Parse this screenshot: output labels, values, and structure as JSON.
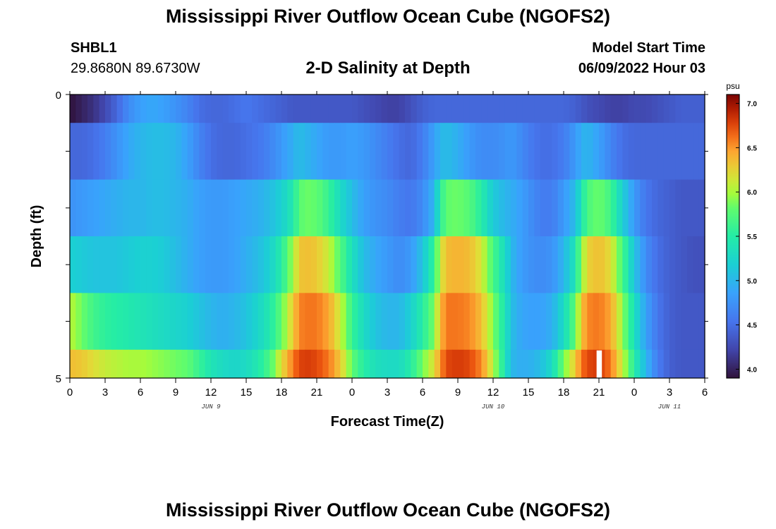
{
  "header": {
    "title": "Mississippi River Outflow Ocean Cube (NGOFS2)",
    "station": "SHBL1",
    "coords": "29.8680N  89.6730W",
    "plot_title": "2-D Salinity at Depth",
    "model_start_label": "Model Start Time",
    "model_start_value": "06/09/2022 Hour 03"
  },
  "footer": {
    "title": "Mississippi River Outflow Ocean Cube (NGOFS2)"
  },
  "colors": {
    "missing": "#ffffff"
  },
  "chart_data": {
    "type": "heatmap",
    "xlabel": "Forecast Time(Z)",
    "ylabel": "Depth (ft)",
    "x_range_hours": [
      0,
      54
    ],
    "x_tick_labels": [
      "0",
      "3",
      "6",
      "9",
      "12",
      "15",
      "18",
      "21",
      "0",
      "3",
      "6",
      "9",
      "12",
      "15",
      "18",
      "21",
      "0",
      "3",
      "6"
    ],
    "date_labels": [
      {
        "label": "JUN 9",
        "hour": 12
      },
      {
        "label": "JUN 10",
        "hour": 36
      },
      {
        "label": "JUN 11",
        "hour": 51
      }
    ],
    "y_range": [
      0,
      5
    ],
    "y_tick_labels": [
      "0",
      "5"
    ],
    "colorbar": {
      "unit": "psu",
      "range": [
        3.9,
        7.1
      ],
      "ticks": [
        "4.0",
        "4.5",
        "5.0",
        "5.5",
        "6.0",
        "6.5",
        "7.0"
      ]
    },
    "depth_bands": [
      0,
      0.5,
      1.5,
      2.5,
      3.5,
      4.5,
      5
    ],
    "time_keyframes_hours": [
      0,
      1,
      2,
      3,
      4,
      5,
      6,
      7,
      8,
      9,
      10,
      11,
      12,
      13,
      14,
      15,
      16,
      17,
      18,
      19,
      19.5,
      20,
      21,
      22,
      23,
      24,
      25,
      26,
      27,
      28,
      29,
      30,
      31,
      31.5,
      32,
      33,
      34,
      35,
      36,
      37,
      37.5,
      38,
      39,
      40,
      41,
      42,
      43,
      43.5,
      44,
      45,
      46,
      47,
      48,
      49,
      50,
      51,
      52,
      53,
      54
    ],
    "salinity_rows": [
      [
        3.9,
        4.0,
        4.1,
        4.25,
        4.45,
        4.7,
        4.85,
        4.9,
        4.85,
        4.75,
        4.65,
        4.5,
        4.45,
        4.45,
        4.5,
        4.55,
        4.5,
        4.45,
        4.4,
        4.35,
        4.35,
        4.35,
        4.35,
        4.35,
        4.35,
        4.35,
        4.3,
        4.25,
        4.2,
        4.2,
        4.3,
        4.4,
        4.45,
        4.45,
        4.45,
        4.45,
        4.45,
        4.45,
        4.45,
        4.45,
        4.45,
        4.45,
        4.45,
        4.45,
        4.45,
        4.45,
        4.4,
        4.35,
        4.3,
        4.25,
        4.2,
        4.2,
        4.25,
        4.25,
        4.3,
        4.35,
        4.4,
        4.4,
        4.4
      ],
      [
        4.45,
        4.45,
        4.5,
        4.6,
        4.75,
        4.9,
        5.0,
        5.05,
        5.05,
        5.0,
        4.85,
        4.65,
        4.5,
        4.45,
        4.45,
        4.5,
        4.55,
        4.65,
        4.8,
        4.95,
        5.05,
        5.0,
        4.9,
        4.8,
        4.8,
        4.85,
        4.8,
        4.7,
        4.6,
        4.5,
        4.45,
        4.6,
        4.85,
        5.0,
        5.05,
        4.95,
        4.8,
        4.7,
        4.7,
        4.75,
        4.8,
        4.75,
        4.6,
        4.5,
        4.5,
        4.6,
        4.8,
        4.95,
        5.0,
        4.85,
        4.65,
        4.5,
        4.45,
        4.45,
        4.45,
        4.45,
        4.45,
        4.45,
        4.45
      ],
      [
        4.75,
        4.8,
        4.85,
        4.9,
        4.95,
        5.0,
        5.0,
        5.05,
        5.05,
        5.0,
        4.95,
        4.85,
        4.8,
        4.8,
        4.85,
        4.9,
        4.95,
        5.05,
        5.2,
        5.45,
        5.75,
        5.85,
        5.8,
        5.6,
        5.3,
        5.05,
        4.85,
        4.75,
        4.7,
        4.6,
        4.55,
        4.7,
        5.0,
        5.5,
        5.8,
        5.85,
        5.75,
        5.5,
        5.15,
        5.0,
        4.95,
        4.9,
        4.75,
        4.6,
        4.6,
        4.8,
        5.05,
        5.4,
        5.7,
        5.85,
        5.65,
        5.2,
        4.8,
        4.55,
        4.45,
        4.4,
        4.35,
        4.35,
        4.35
      ],
      [
        5.2,
        5.15,
        5.1,
        5.1,
        5.1,
        5.15,
        5.2,
        5.2,
        5.15,
        5.05,
        4.95,
        4.85,
        4.8,
        4.8,
        4.85,
        4.95,
        5.05,
        5.2,
        5.5,
        6.0,
        6.3,
        6.35,
        6.3,
        6.1,
        5.75,
        5.35,
        5.05,
        4.9,
        4.8,
        4.7,
        4.8,
        5.1,
        5.6,
        6.1,
        6.35,
        6.4,
        6.35,
        6.15,
        5.7,
        5.3,
        5.05,
        4.9,
        4.75,
        4.7,
        4.75,
        5.0,
        5.4,
        5.9,
        6.25,
        6.35,
        6.2,
        5.7,
        5.1,
        4.7,
        4.5,
        4.4,
        4.35,
        4.3,
        4.3
      ],
      [
        6.05,
        5.85,
        5.65,
        5.55,
        5.5,
        5.45,
        5.4,
        5.35,
        5.3,
        5.25,
        5.2,
        5.1,
        5.0,
        4.95,
        5.0,
        5.1,
        5.25,
        5.45,
        5.8,
        6.3,
        6.55,
        6.6,
        6.6,
        6.45,
        6.1,
        5.6,
        5.3,
        5.1,
        5.0,
        5.0,
        5.2,
        5.5,
        5.9,
        6.35,
        6.6,
        6.6,
        6.55,
        6.35,
        5.9,
        5.4,
        5.1,
        4.95,
        4.85,
        4.85,
        4.95,
        5.3,
        5.8,
        6.3,
        6.55,
        6.6,
        6.45,
        5.95,
        5.35,
        4.85,
        4.55,
        4.4,
        4.35,
        4.35,
        4.35
      ],
      [
        6.35,
        6.3,
        6.2,
        6.1,
        6.05,
        6.0,
        6.0,
        5.95,
        5.9,
        5.85,
        5.8,
        5.6,
        5.4,
        5.3,
        5.25,
        5.3,
        5.45,
        5.7,
        6.2,
        6.6,
        6.75,
        6.8,
        6.75,
        6.6,
        6.3,
        5.8,
        5.5,
        5.35,
        5.3,
        5.3,
        5.5,
        5.85,
        6.2,
        6.5,
        6.75,
        6.8,
        6.75,
        6.55,
        6.05,
        5.4,
        5.05,
        4.95,
        4.95,
        5.05,
        5.3,
        5.85,
        6.3,
        6.6,
        6.75,
        6.8,
        6.6,
        6.1,
        5.5,
        5.0,
        4.6,
        4.4,
        4.35,
        4.35,
        4.35
      ]
    ],
    "missing_cells": [
      {
        "hour_start": 44.8,
        "hour_end": 45.25,
        "band": 5
      }
    ]
  }
}
